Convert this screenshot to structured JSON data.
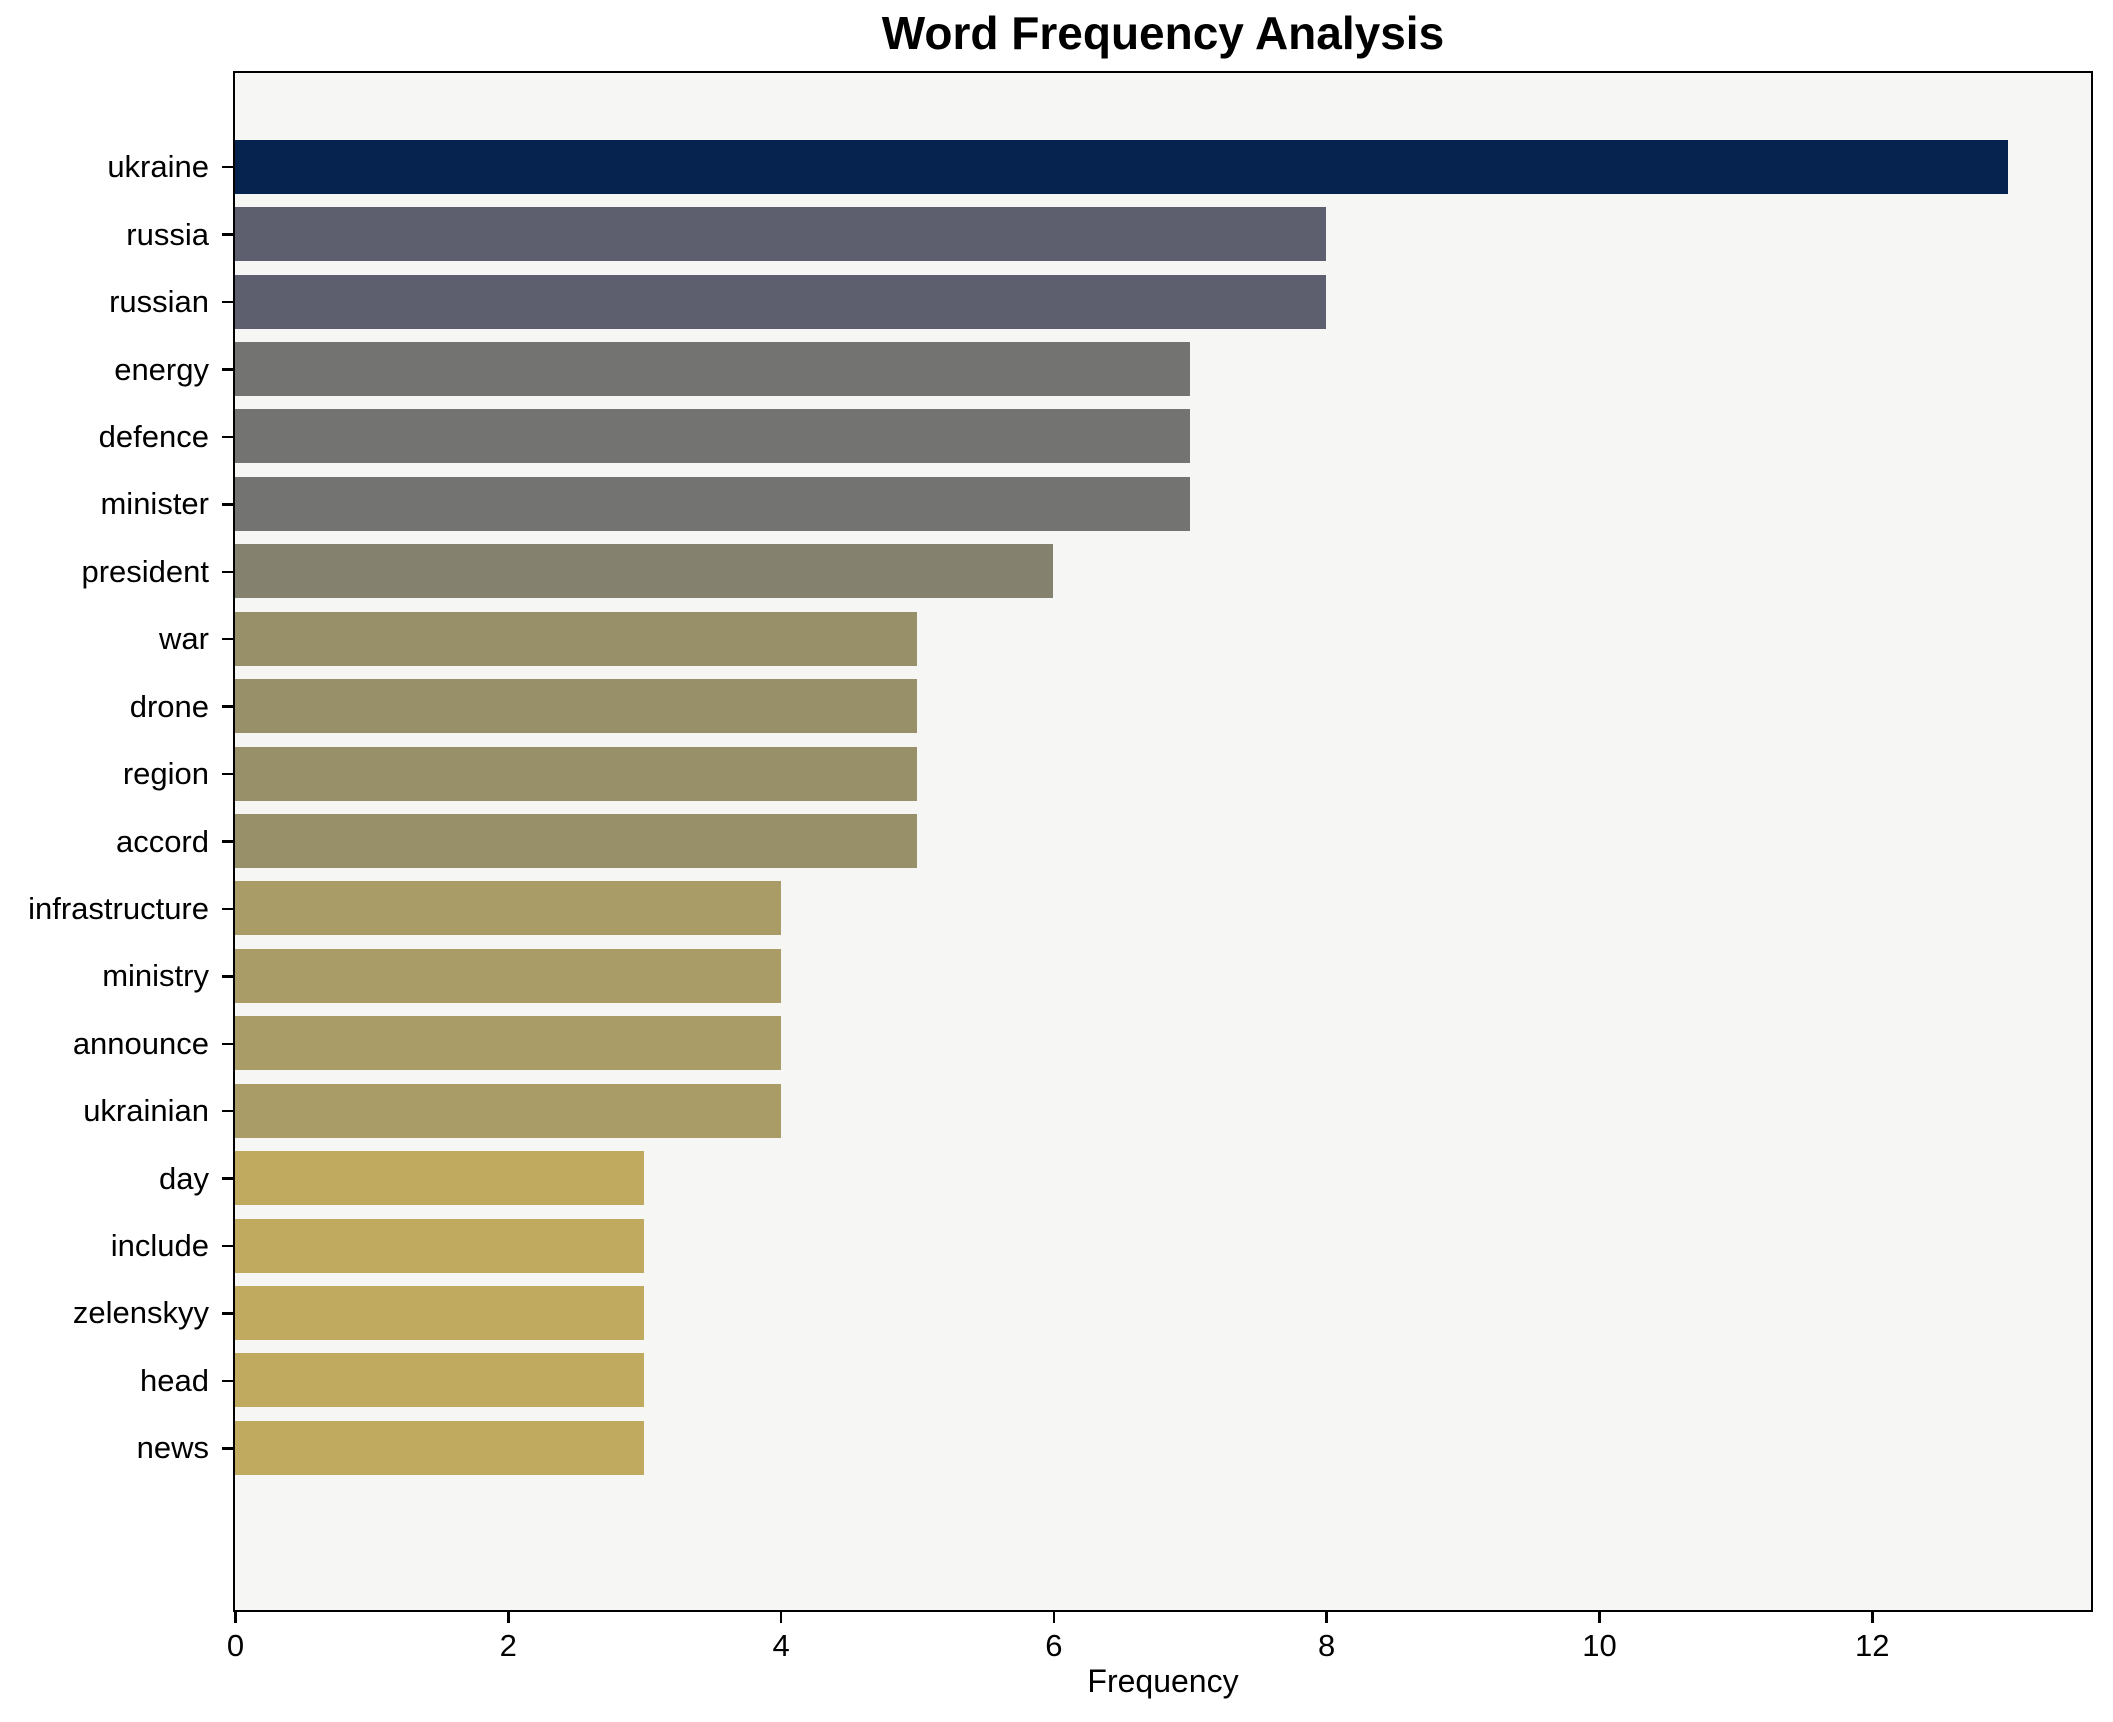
{
  "figure": {
    "background": "#ffffff",
    "plot_background": "#f6f6f5",
    "spine_color": "#000000"
  },
  "chart_data": {
    "type": "bar",
    "orientation": "horizontal",
    "title": "Word Frequency Analysis",
    "xlabel": "Frequency",
    "ylabel": "",
    "categories": [
      "ukraine",
      "russia",
      "russian",
      "energy",
      "defence",
      "minister",
      "president",
      "war",
      "drone",
      "region",
      "accord",
      "infrastructure",
      "ministry",
      "announce",
      "ukrainian",
      "day",
      "include",
      "zelenskyy",
      "head",
      "news"
    ],
    "values": [
      13,
      8,
      8,
      7,
      7,
      7,
      6,
      5,
      5,
      5,
      5,
      4,
      4,
      4,
      4,
      3,
      3,
      3,
      3,
      3
    ],
    "bar_colors": [
      "#05234e",
      "#5d5f6e",
      "#5d5f6e",
      "#737371",
      "#737371",
      "#737371",
      "#84816f",
      "#989069",
      "#989069",
      "#989069",
      "#989069",
      "#a99c66",
      "#a99c66",
      "#a99c66",
      "#a99c66",
      "#bfaa5f",
      "#bfaa5f",
      "#bfaa5f",
      "#bfaa5f",
      "#bfaa5f"
    ],
    "xlim": [
      0,
      13.6
    ],
    "xticks": [
      0,
      2,
      4,
      6,
      8,
      10,
      12
    ],
    "grid": false,
    "legend": null
  }
}
